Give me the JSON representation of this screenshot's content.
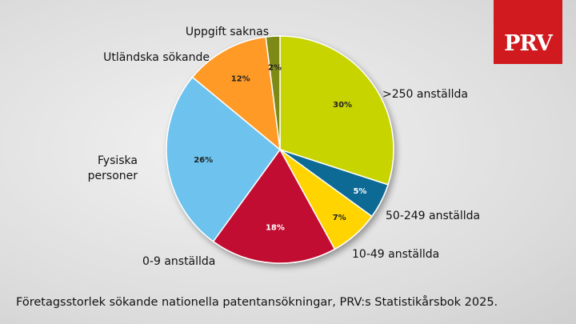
{
  "logo": {
    "text": "PRV",
    "color": "#d01a1f"
  },
  "caption": "Företagsstorlek sökande nationella patentansökningar, PRV:s Statistikårsbok 2025.",
  "chart_data": {
    "type": "pie",
    "start": "12 o'clock, clockwise",
    "slices": [
      {
        "label": ">250 anställda",
        "value": 30,
        "pct_label": "30%",
        "color": "#c8d400"
      },
      {
        "label": "50-249 anställda",
        "value": 5,
        "pct_label": "5%",
        "color": "#0c6b94"
      },
      {
        "label": "10-49 anställda",
        "value": 7,
        "pct_label": "7%",
        "color": "#ffd400"
      },
      {
        "label": "0-9 anställda",
        "value": 18,
        "pct_label": "18%",
        "color": "#c20e32"
      },
      {
        "label": "Fysiska\npersoner",
        "value": 26,
        "pct_label": "26%",
        "color": "#6ec3ee"
      },
      {
        "label": "Utländska sökande",
        "value": 12,
        "pct_label": "12%",
        "color": "#ff9a28"
      },
      {
        "label": "Uppgift saknas",
        "value": 2,
        "pct_label": "2%",
        "color": "#7e8a13"
      }
    ]
  }
}
